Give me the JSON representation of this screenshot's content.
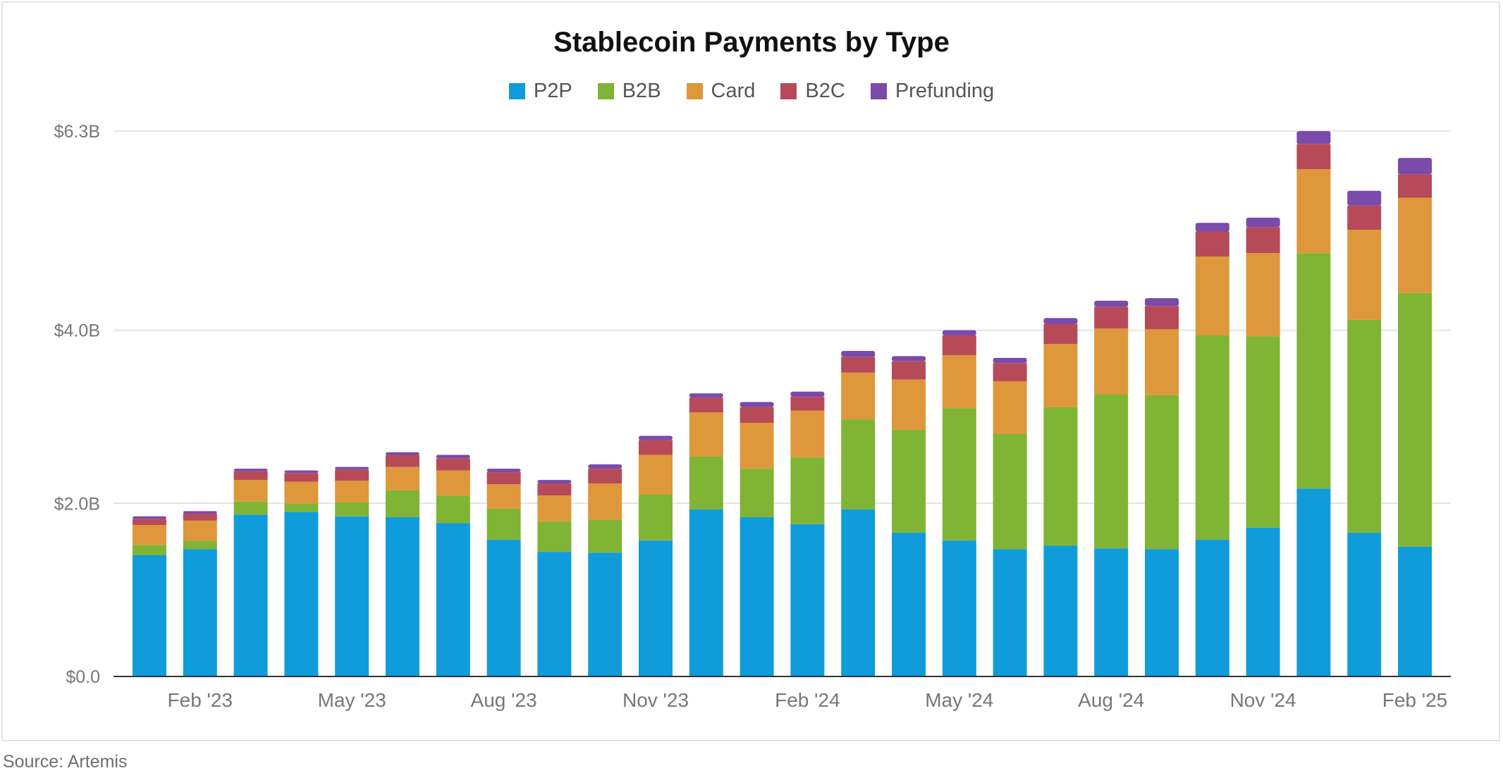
{
  "source": "Source: Artemis",
  "colors": {
    "P2P": "#109cdb",
    "B2B": "#80b434",
    "Card": "#df973b",
    "B2C": "#b74a59",
    "Prefunding": "#7a4baa"
  },
  "chart_data": {
    "type": "bar",
    "stacked": true,
    "title": "Stablecoin Payments by Type",
    "xlabel": "",
    "ylabel": "",
    "ylim": [
      0,
      6.3
    ],
    "yticks": [
      0,
      2.0,
      4.0,
      6.3
    ],
    "ytick_labels": [
      "$0.0",
      "$2.0B",
      "$4.0B",
      "$6.3B"
    ],
    "grid": true,
    "legend_position": "top-center",
    "categories": [
      "Jan '23",
      "Feb '23",
      "Mar '23",
      "Apr '23",
      "May '23",
      "Jun '23",
      "Jul '23",
      "Aug '23",
      "Sep '23",
      "Oct '23",
      "Nov '23",
      "Dec '23",
      "Jan '24",
      "Feb '24",
      "Mar '24",
      "Apr '24",
      "May '24",
      "Jun '24",
      "Jul '24",
      "Aug '24",
      "Sep '24",
      "Oct '24",
      "Nov '24",
      "Dec '24",
      "Jan '25",
      "Feb '25"
    ],
    "x_tick_labels": [
      {
        "index": 1,
        "label": "Feb '23"
      },
      {
        "index": 4,
        "label": "May '23"
      },
      {
        "index": 7,
        "label": "Aug '23"
      },
      {
        "index": 10,
        "label": "Nov '23"
      },
      {
        "index": 13,
        "label": "Feb '24"
      },
      {
        "index": 16,
        "label": "May '24"
      },
      {
        "index": 19,
        "label": "Aug '24"
      },
      {
        "index": 22,
        "label": "Nov '24"
      },
      {
        "index": 25,
        "label": "Feb '25"
      }
    ],
    "series": [
      {
        "name": "P2P",
        "values": [
          1.4,
          1.47,
          1.87,
          1.9,
          1.85,
          1.84,
          1.77,
          1.58,
          1.44,
          1.43,
          1.57,
          1.93,
          1.84,
          1.76,
          1.93,
          1.66,
          1.57,
          1.47,
          1.51,
          1.48,
          1.47,
          1.58,
          1.72,
          2.17,
          1.66,
          1.5
        ]
      },
      {
        "name": "B2B",
        "values": [
          0.12,
          0.1,
          0.15,
          0.1,
          0.16,
          0.31,
          0.32,
          0.36,
          0.35,
          0.38,
          0.53,
          0.61,
          0.56,
          0.77,
          1.04,
          1.19,
          1.53,
          1.33,
          1.6,
          1.78,
          1.78,
          2.36,
          2.21,
          2.72,
          2.46,
          2.93
        ]
      },
      {
        "name": "Card",
        "values": [
          0.23,
          0.23,
          0.25,
          0.25,
          0.25,
          0.27,
          0.29,
          0.28,
          0.3,
          0.42,
          0.46,
          0.51,
          0.53,
          0.54,
          0.54,
          0.58,
          0.61,
          0.61,
          0.73,
          0.76,
          0.76,
          0.91,
          0.96,
          0.97,
          1.04,
          1.1
        ]
      },
      {
        "name": "B2C",
        "values": [
          0.07,
          0.08,
          0.1,
          0.1,
          0.13,
          0.14,
          0.14,
          0.14,
          0.14,
          0.17,
          0.17,
          0.17,
          0.18,
          0.16,
          0.18,
          0.21,
          0.23,
          0.21,
          0.23,
          0.25,
          0.27,
          0.29,
          0.3,
          0.29,
          0.28,
          0.27
        ]
      },
      {
        "name": "Prefunding",
        "values": [
          0.03,
          0.03,
          0.03,
          0.03,
          0.03,
          0.03,
          0.04,
          0.04,
          0.04,
          0.05,
          0.05,
          0.05,
          0.06,
          0.06,
          0.07,
          0.06,
          0.06,
          0.06,
          0.07,
          0.07,
          0.09,
          0.1,
          0.11,
          0.15,
          0.17,
          0.19
        ]
      }
    ]
  }
}
